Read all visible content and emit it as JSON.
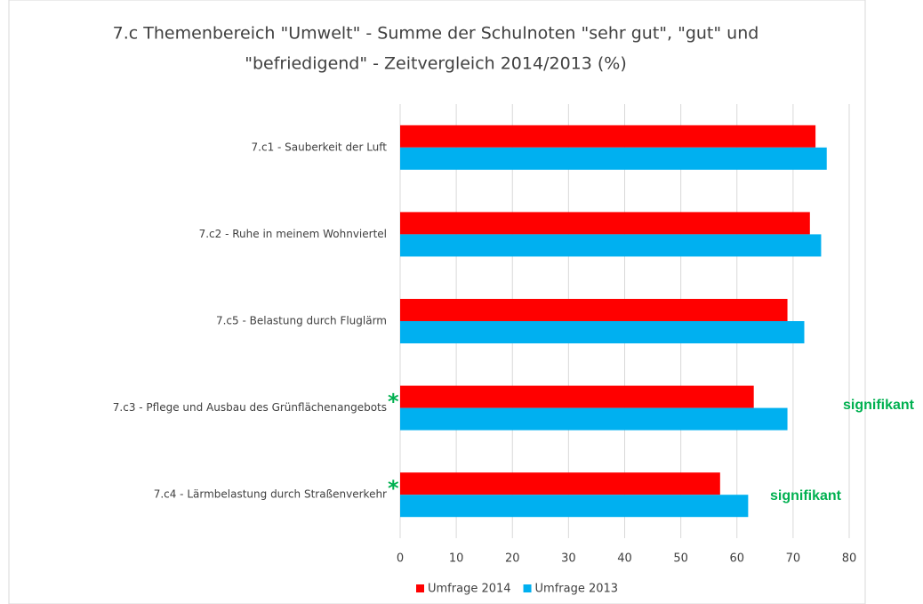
{
  "chart_data": {
    "type": "bar",
    "orientation": "horizontal",
    "title": [
      "7.c Themenbereich \"Umwelt\" - Summe der Schulnoten \"sehr gut\", \"gut\" und",
      "\"befriedigend\" - Zeitvergleich 2014/2013 (%)"
    ],
    "categories": [
      "7.c1 - Sauberkeit der Luft",
      "7.c2 - Ruhe in meinem Wohnviertel",
      "7.c5 - Belastung durch Fluglärm",
      "7.c3 - Pflege und Ausbau des Grünflächenangebots",
      "7.c4 - Lärmbelastung durch Straßenverkehr"
    ],
    "series": [
      {
        "name": "Umfrage 2014",
        "color": "#ff0000",
        "values": [
          74,
          73,
          69,
          63,
          57
        ]
      },
      {
        "name": "Umfrage 2013",
        "color": "#00b0f0",
        "values": [
          76,
          75,
          72,
          69,
          62
        ]
      }
    ],
    "xlim": [
      0,
      80
    ],
    "xticks": [
      0,
      10,
      20,
      30,
      40,
      50,
      60,
      70,
      80
    ],
    "grid": true,
    "legend": "bottom",
    "annotations": [
      {
        "category": "7.c3 - Pflege und Ausbau des Grünflächenangebots",
        "marker": "*",
        "text": "signifikant",
        "color": "#00b050"
      },
      {
        "category": "7.c4 - Lärmbelastung durch Straßenverkehr",
        "marker": "*",
        "text": "signifikant",
        "color": "#00b050"
      }
    ]
  }
}
